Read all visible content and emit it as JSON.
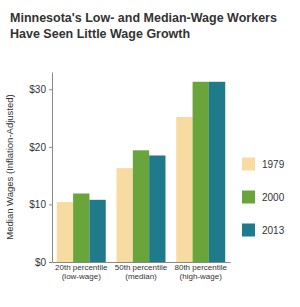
{
  "chart_data": {
    "type": "bar",
    "title": "Minnesota's Low- and Median-Wage Workers Have Seen Little Wage Growth",
    "y_label": "Median Wages (Inflation-Adjusted)",
    "categories": [
      "20th percentile (low-wage)",
      "50th percentile (median)",
      "80th percentile (high-wage)"
    ],
    "series": [
      {
        "name": "1979",
        "color": "#f7dba0",
        "values": [
          10.4,
          16.3,
          25.2
        ]
      },
      {
        "name": "2000",
        "color": "#6aa53b",
        "values": [
          11.9,
          19.4,
          31.3
        ]
      },
      {
        "name": "2013",
        "color": "#1f7b8c",
        "values": [
          10.8,
          18.5,
          31.3
        ]
      }
    ],
    "ylim": [
      0,
      33
    ],
    "yticks": [
      {
        "value": 0,
        "label": "$0"
      },
      {
        "value": 10,
        "label": "$10"
      },
      {
        "value": 20,
        "label": "$20"
      },
      {
        "value": 30,
        "label": "$30"
      }
    ],
    "grid": false,
    "legend": "right"
  }
}
